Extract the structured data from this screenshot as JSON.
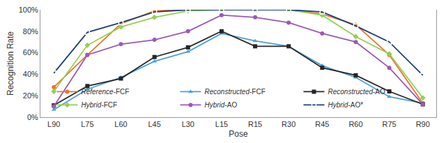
{
  "chart_data": {
    "type": "line",
    "x_label": "Pose",
    "y_label": "Recognition Rate",
    "categories": [
      "L90",
      "L75",
      "L60",
      "L45",
      "L30",
      "L15",
      "R15",
      "R30",
      "R45",
      "R60",
      "R75",
      "R90"
    ],
    "ylim": [
      0,
      100
    ],
    "yticks": [
      {
        "value": 0,
        "label": "0%"
      },
      {
        "value": 20,
        "label": "20%"
      },
      {
        "value": 40,
        "label": "40%"
      },
      {
        "value": 60,
        "label": "60%"
      },
      {
        "value": 80,
        "label": "80%"
      },
      {
        "value": 100,
        "label": "100%"
      }
    ],
    "grid": false,
    "legend": "bottom",
    "series": [
      {
        "name": "Reference-FCF",
        "color": "#e8762c",
        "marker": "circle",
        "line_style": "solid",
        "values": [
          28,
          58,
          87,
          99,
          100,
          100,
          100,
          100,
          96,
          86,
          58,
          13
        ]
      },
      {
        "name": "Reconstructed-FCF",
        "color": "#4f9fd6",
        "marker": "triangle-up",
        "line_style": "solid",
        "values": [
          7,
          26,
          37,
          52,
          61,
          78,
          71,
          66,
          48,
          37,
          19,
          13
        ]
      },
      {
        "name": "Reconstructed-AO",
        "color": "#262626",
        "marker": "square",
        "line_style": "solid",
        "values": [
          11,
          29,
          36,
          56,
          65,
          80,
          66,
          66,
          46,
          39,
          24,
          12
        ]
      },
      {
        "name": "Hybrid-FCF",
        "color": "#92d050",
        "marker": "diamond",
        "line_style": "solid",
        "values": [
          24,
          67,
          84,
          93,
          99,
          100,
          100,
          100,
          95,
          75,
          59,
          18
        ]
      },
      {
        "name": "Hybrid-AO",
        "color": "#9b59b6",
        "marker": "circle",
        "line_style": "solid",
        "values": [
          10,
          58,
          68,
          72,
          80,
          95,
          93,
          88,
          78,
          70,
          46,
          12
        ]
      },
      {
        "name": "Hybrid-AO*",
        "color": "#1f3d7a",
        "marker": "square-open",
        "line_style": "solid",
        "values": [
          41,
          79,
          88,
          98,
          100,
          100,
          100,
          100,
          98,
          85,
          70,
          39
        ]
      }
    ]
  }
}
